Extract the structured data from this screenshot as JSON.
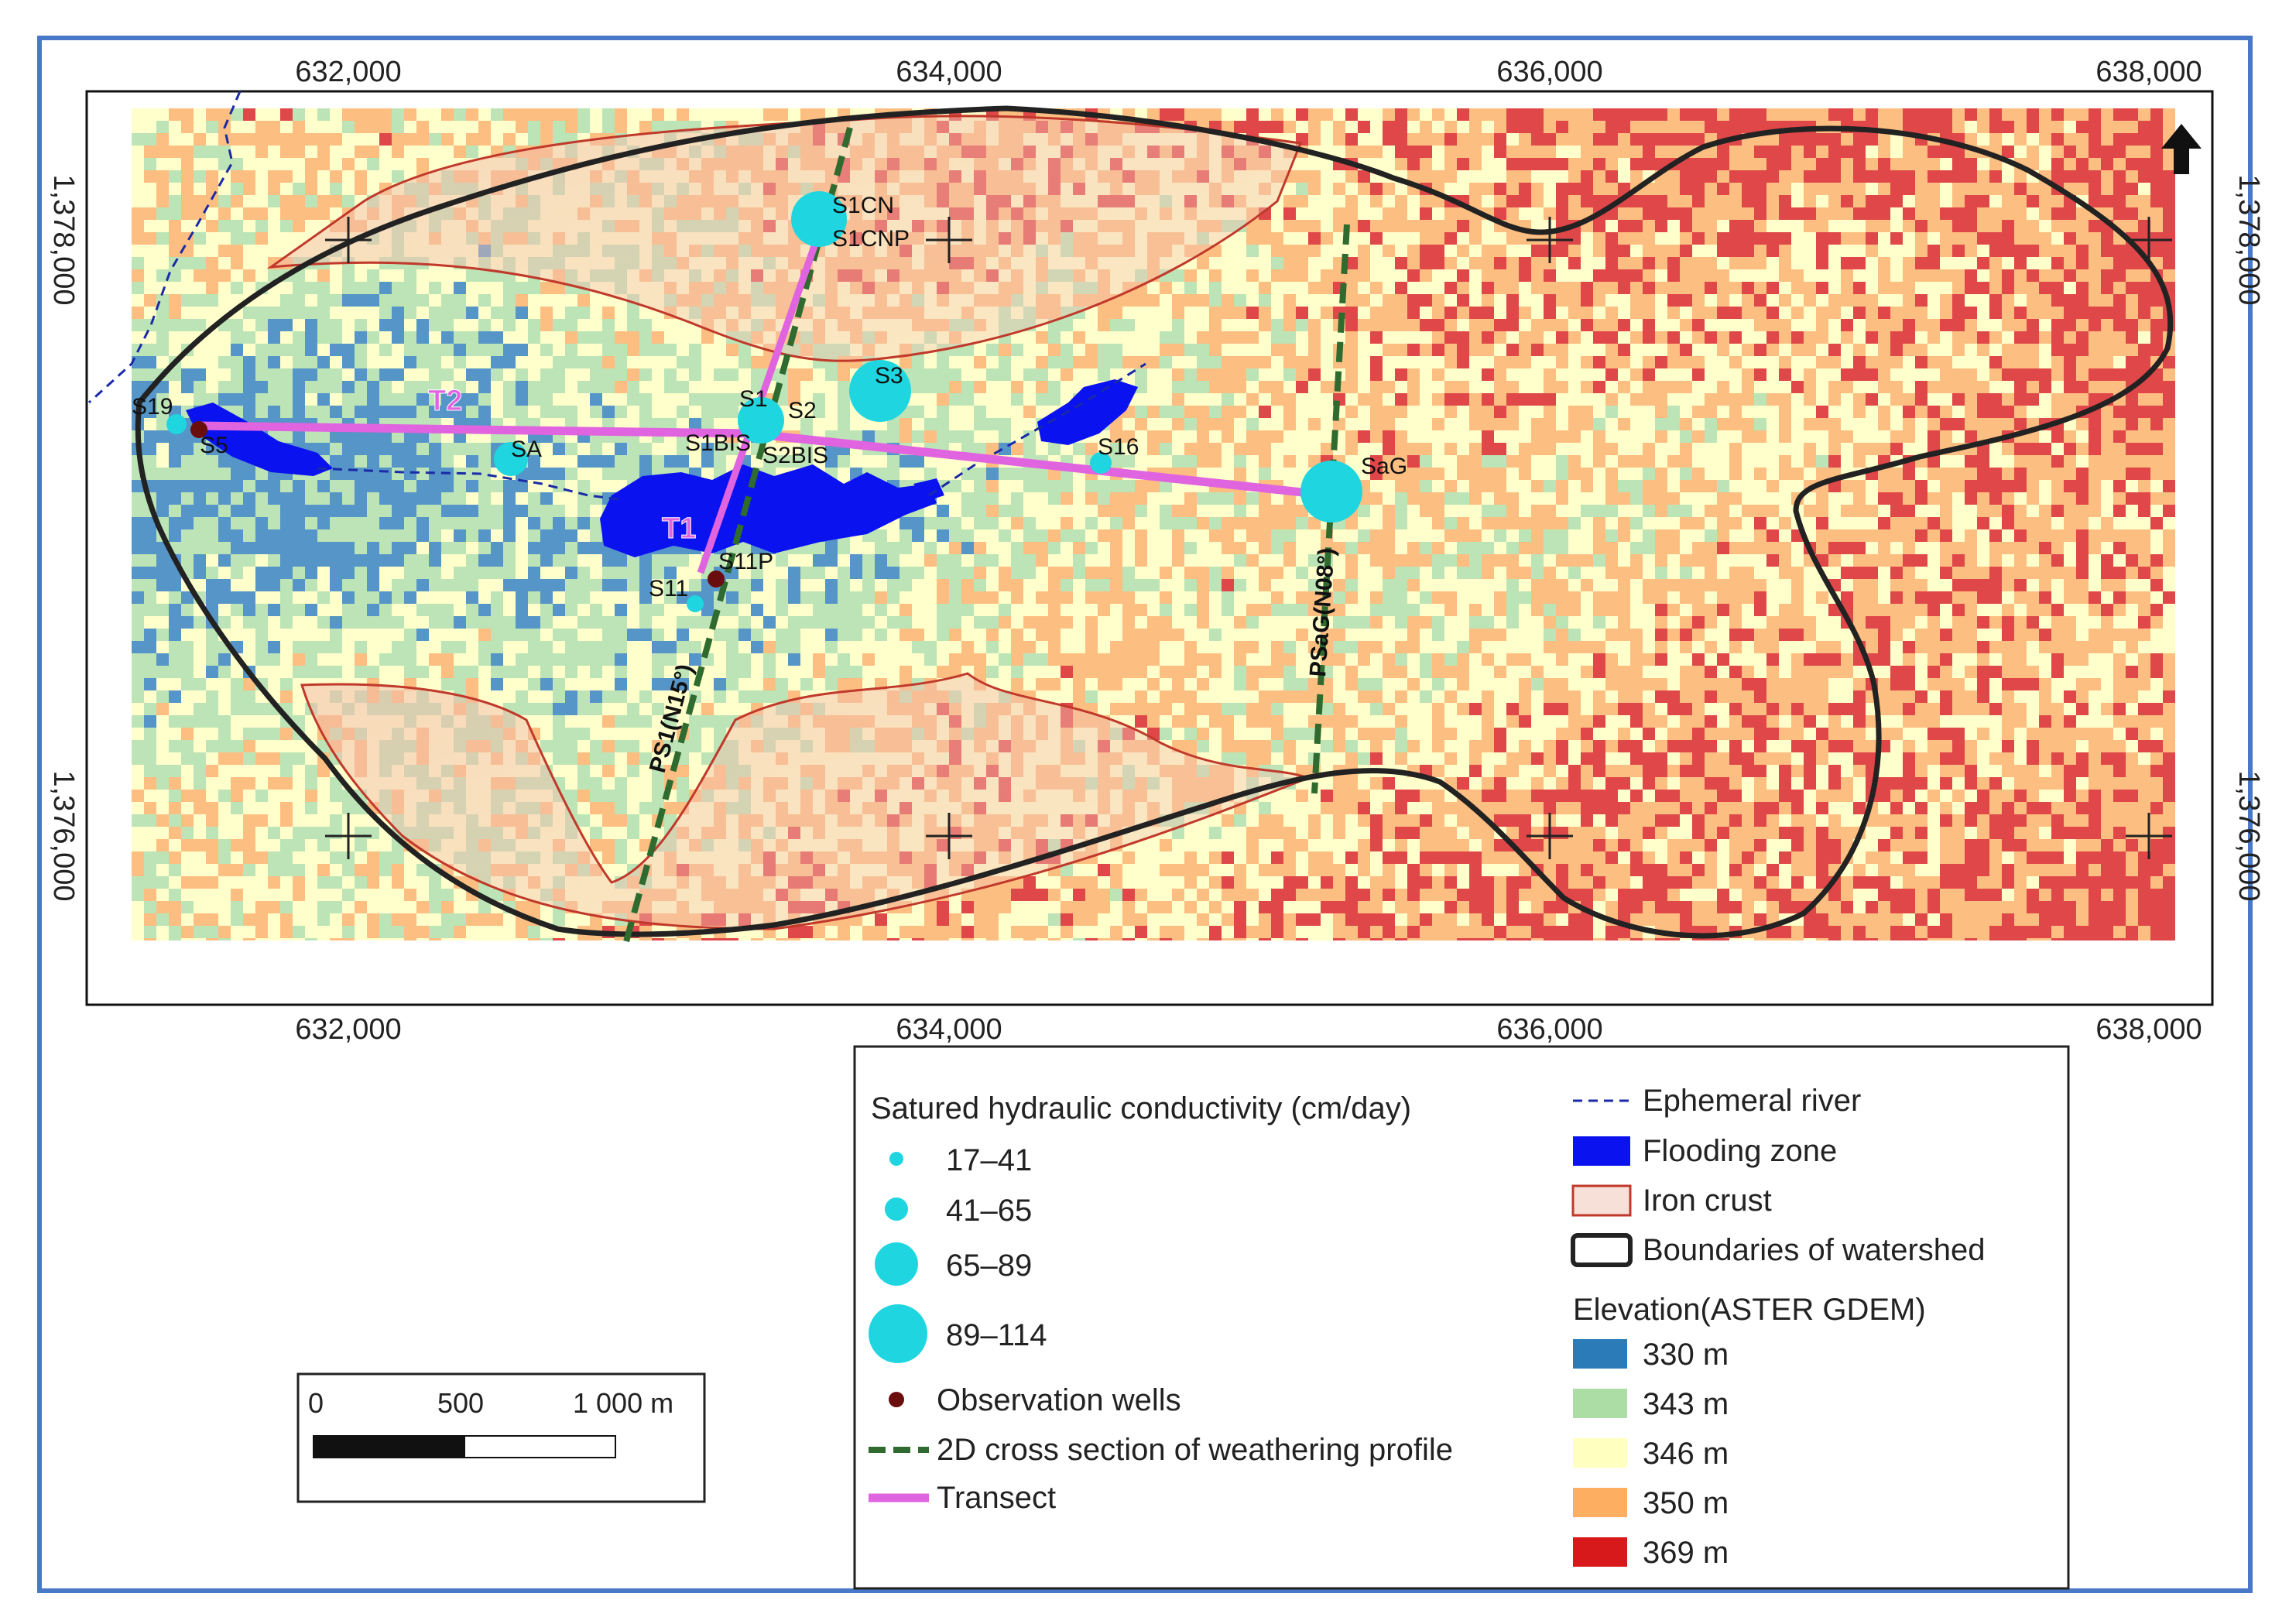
{
  "map": {
    "x_ticks": [
      "632,000",
      "634,000",
      "636,000",
      "638,000"
    ],
    "y_ticks": [
      "1,378,000",
      "1,376,000"
    ],
    "north_arrow": "north-arrow-icon"
  },
  "sites": [
    {
      "id": "S1CN",
      "label": "S1CN",
      "class": "89–114"
    },
    {
      "id": "S1CNP",
      "label": "S1CNP",
      "class": "observation"
    },
    {
      "id": "S3",
      "label": "S3",
      "class": "89–114"
    },
    {
      "id": "S1",
      "label": "S1",
      "class": "65–89"
    },
    {
      "id": "S2",
      "label": "S2",
      "class": "65–89"
    },
    {
      "id": "S1BIS",
      "label": "S1BIS",
      "class": "17–41"
    },
    {
      "id": "S2BIS",
      "label": "S2BIS",
      "class": "17–41"
    },
    {
      "id": "S19",
      "label": "S19",
      "class": "41–65"
    },
    {
      "id": "S5",
      "label": "S5",
      "class": "observation"
    },
    {
      "id": "SA",
      "label": "SA",
      "class": "65–89"
    },
    {
      "id": "S16",
      "label": "S16",
      "class": "41–65"
    },
    {
      "id": "SaG",
      "label": "SaG",
      "class": "89–114"
    },
    {
      "id": "S11",
      "label": "S11",
      "class": "17–41"
    },
    {
      "id": "S11P",
      "label": "S11P",
      "class": "observation"
    }
  ],
  "transects": [
    "T1",
    "T2"
  ],
  "profiles": [
    "PS1(N15°)",
    "PSaG(N08°)"
  ],
  "scale_bar": {
    "labels": [
      "0",
      "500",
      "1 000 m"
    ]
  },
  "legend": {
    "conductivity_title": "Satured hydraulic conductivity (cm/day)",
    "conductivity_classes": [
      "17–41",
      "41–65",
      "65–89",
      "89–114"
    ],
    "observation_wells": "Observation wells",
    "cross_section": "2D cross section of weathering profile",
    "transect": "Transect",
    "ephemeral_river": "Ephemeral river",
    "flooding_zone": "Flooding zone",
    "iron_crust": "Iron crust",
    "boundaries": "Boundaries of watershed",
    "elevation_title": "Elevation(ASTER GDEM)",
    "elevation_classes": [
      {
        "label": "330 m",
        "color": "#2b7bb9"
      },
      {
        "label": "343 m",
        "color": "#abdda4"
      },
      {
        "label": "346 m",
        "color": "#ffffbf"
      },
      {
        "label": "350 m",
        "color": "#fdae61"
      },
      {
        "label": "369 m",
        "color": "#d7191c"
      }
    ]
  },
  "colors": {
    "frame": "#4a78c8",
    "cyan": "#1fd6e0",
    "well": "#6a0d0d",
    "transect": "#e063e0",
    "cross_section": "#2f6a2f",
    "flooding": "#0a12f0",
    "river": "#1a2aa8",
    "iron_crust": "#c0392b"
  }
}
